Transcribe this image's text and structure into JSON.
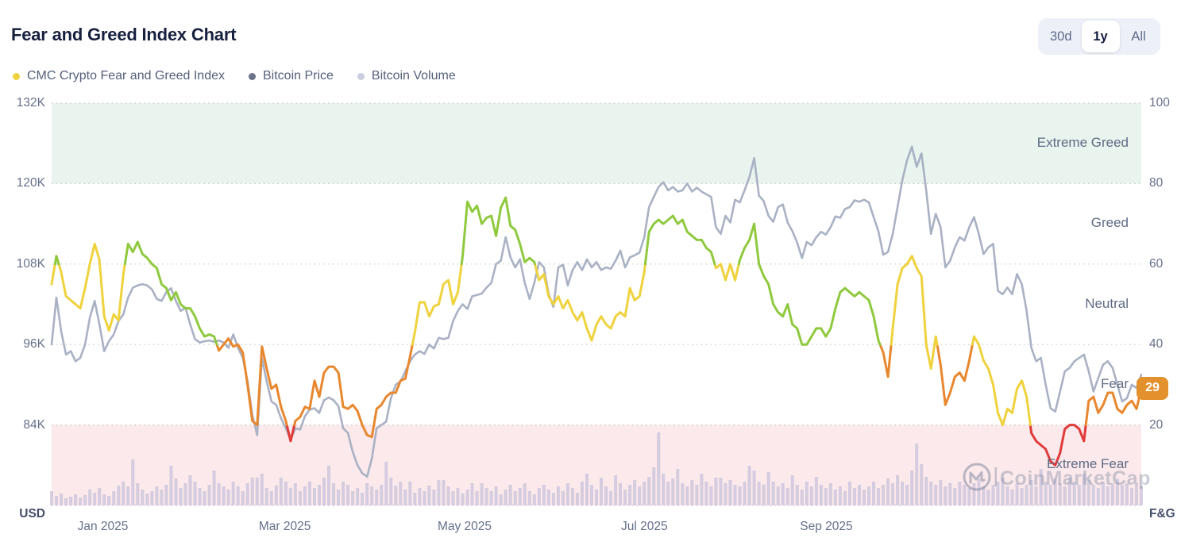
{
  "header": {
    "title": "Fear and Greed Index Chart"
  },
  "toolbar": {
    "ranges": [
      {
        "label": "30d",
        "active": false
      },
      {
        "label": "1y",
        "active": true
      },
      {
        "label": "All",
        "active": false
      }
    ]
  },
  "legend": [
    {
      "label": "CMC Crypto Fear and Greed Index",
      "color": "#efd23d"
    },
    {
      "label": "Bitcoin Price",
      "color": "#6a7288"
    },
    {
      "label": "Bitcoin Volume",
      "color": "#c9cede"
    }
  ],
  "watermark": {
    "label": "CoinMarketCap"
  },
  "chart_data": {
    "type": "line",
    "title": "Fear and Greed Index Chart",
    "legend_position": "top-left",
    "grid": "horizontal-dotted",
    "grid_color": "#c9c9c9",
    "x_ticks": [
      {
        "label": "Jan 2025",
        "pct": 4.7
      },
      {
        "label": "Mar 2025",
        "pct": 21.4
      },
      {
        "label": "May 2025",
        "pct": 37.9
      },
      {
        "label": "Jul 2025",
        "pct": 54.4
      },
      {
        "label": "Sep 2025",
        "pct": 71.1
      }
    ],
    "y_left": {
      "unit": "USD",
      "range_thousand_usd": [
        72,
        132
      ],
      "ticks": [
        {
          "label": "132K",
          "value": 132
        },
        {
          "label": "120K",
          "value": 120
        },
        {
          "label": "108K",
          "value": 108
        },
        {
          "label": "96K",
          "value": 96
        },
        {
          "label": "84K",
          "value": 84
        }
      ]
    },
    "y_right": {
      "unit": "F&G",
      "range": [
        0,
        100
      ],
      "ticks": [
        {
          "label": "100",
          "value": 100
        },
        {
          "label": "80",
          "value": 80
        },
        {
          "label": "60",
          "value": 60
        },
        {
          "label": "40",
          "value": 40
        },
        {
          "label": "20",
          "value": 20
        }
      ]
    },
    "zones": [
      {
        "label": "Extreme Greed",
        "min": 80,
        "max": 100,
        "band": "#e9f4ee"
      },
      {
        "label": "Greed",
        "min": 60,
        "max": 80,
        "band": null
      },
      {
        "label": "Neutral",
        "min": 40,
        "max": 60,
        "band": null
      },
      {
        "label": "Fear",
        "min": 20,
        "max": 40,
        "band": null
      },
      {
        "label": "Extreme Fear",
        "min": 0,
        "max": 20,
        "band": "#fbe9eb"
      }
    ],
    "fg_segment_colors": [
      {
        "max": 20,
        "color": "#e03a3a"
      },
      {
        "max": 40,
        "color": "#e8872e"
      },
      {
        "max": 60,
        "color": "#efd23d"
      },
      {
        "max": 80,
        "color": "#8fc93e"
      },
      {
        "max": 100,
        "color": "#4fae3f"
      }
    ],
    "btc_line_color": "#a9b1c4",
    "volume_bar_color": "#cfc8de",
    "current_value": {
      "value": 29,
      "color": "#e2912c"
    },
    "series": [
      {
        "name": "CMC Crypto Fear and Greed Index",
        "axis": "right",
        "type": "line",
        "values": [
          55,
          62,
          58,
          52,
          51,
          50,
          49,
          54,
          60,
          65,
          61,
          47,
          43.5,
          47.5,
          46,
          57.5,
          65,
          63,
          65.5,
          62.5,
          61.5,
          60,
          59,
          55,
          54,
          51,
          53,
          50,
          49,
          49,
          47,
          44,
          42,
          42.5,
          42,
          38.5,
          40,
          41.5,
          39.5,
          40,
          38,
          30,
          21,
          20,
          39.5,
          34,
          29,
          30,
          24.5,
          21,
          16,
          21,
          22,
          24.5,
          24,
          31,
          27,
          33,
          34.5,
          34.5,
          33,
          24.5,
          24,
          25,
          23.5,
          20,
          17.5,
          17,
          24,
          25,
          27,
          28,
          28,
          31,
          31.5,
          37,
          43,
          50.5,
          50.5,
          47,
          49.5,
          50,
          55,
          56,
          50,
          53,
          62,
          75.5,
          73,
          74.5,
          70,
          71.5,
          72,
          67,
          74,
          76.5,
          69.5,
          68.5,
          65,
          60.5,
          61.5,
          60.5,
          56,
          57.5,
          52,
          50,
          52,
          49,
          51,
          48,
          46,
          48,
          44,
          41,
          45,
          47,
          45,
          44,
          47,
          48,
          47,
          54,
          51,
          52,
          58,
          68,
          70,
          71,
          70,
          71,
          72,
          70,
          71,
          68,
          67,
          66,
          66,
          64,
          63,
          59,
          60,
          56,
          60,
          56,
          61,
          64,
          66,
          70,
          60,
          57,
          55,
          50,
          48,
          47,
          50,
          45,
          44,
          40,
          40,
          42,
          44,
          44,
          42,
          44,
          49,
          53,
          54,
          53,
          52,
          53,
          52,
          51,
          47,
          41,
          38,
          32,
          44,
          55,
          59,
          60,
          62,
          59,
          57,
          40,
          34,
          42,
          35,
          25,
          28,
          32,
          33,
          31,
          36,
          42,
          40,
          36,
          34,
          30,
          23,
          20,
          24,
          23,
          29,
          31,
          27,
          18,
          16,
          15,
          14,
          11,
          10,
          13,
          19,
          20,
          20,
          19,
          16,
          26,
          27,
          23,
          25,
          28,
          28,
          24,
          23,
          25,
          26,
          24,
          29
        ]
      },
      {
        "name": "Bitcoin Price",
        "axis": "left",
        "type": "line",
        "unit": "thousand USD",
        "values": [
          96,
          103,
          98,
          94.5,
          95,
          93.5,
          94,
          96,
          100,
          102.5,
          99,
          95,
          96.5,
          97.5,
          99.5,
          100.5,
          103,
          104.5,
          104.8,
          105,
          104.8,
          104.2,
          102.8,
          102.5,
          103.8,
          104.4,
          102.5,
          101,
          101.5,
          99,
          96.8,
          96.3,
          96.5,
          96.6,
          96.4,
          96.6,
          96.3,
          95.5,
          97.5,
          95.5,
          94,
          90.5,
          85.5,
          82.5,
          94,
          90.5,
          87.5,
          87,
          85,
          83.5,
          81.8,
          83.5,
          83.3,
          85.3,
          86.3,
          86.5,
          85.8,
          87.7,
          88.1,
          87.7,
          86.8,
          83.5,
          82.8,
          80,
          78,
          76.8,
          76.3,
          79,
          83.5,
          84,
          84.5,
          88,
          90,
          90.5,
          92,
          93.5,
          94.5,
          95,
          94.6,
          96,
          95.4,
          97,
          96.8,
          97,
          99.5,
          101,
          102,
          101.3,
          103.2,
          103.4,
          103.6,
          104.5,
          105.2,
          108,
          108.5,
          112,
          109,
          107.5,
          108.7,
          105.2,
          102.8,
          105.2,
          108.3,
          107.5,
          103.6,
          101.6,
          107.5,
          107.9,
          104.8,
          107.1,
          108.3,
          107.1,
          108.7,
          107.5,
          108.3,
          107.1,
          107.5,
          107.3,
          108.5,
          110,
          107.5,
          109,
          109.3,
          109.7,
          112,
          116.5,
          118,
          119.5,
          120.2,
          119,
          119.5,
          118.8,
          119,
          120,
          118.8,
          119.4,
          118.8,
          118.4,
          118,
          113.5,
          112.5,
          115.2,
          114.2,
          117.6,
          117.2,
          119,
          121,
          123.8,
          118.2,
          117.4,
          115.2,
          114.3,
          116.5,
          116.9,
          114.2,
          112.9,
          111.2,
          108.9,
          111.3,
          110.8,
          112,
          112.8,
          112.4,
          113.5,
          115.1,
          114.9,
          116.2,
          116.5,
          117.5,
          117.3,
          117.6,
          117.2,
          115,
          112.9,
          109.4,
          109.8,
          112.5,
          116.5,
          120.5,
          123.5,
          125.5,
          122.5,
          124.5,
          119,
          112.5,
          115.5,
          113.5,
          107.5,
          108.5,
          110.5,
          112,
          111.5,
          113.5,
          115,
          112.5,
          109.5,
          110.5,
          111,
          104,
          103.5,
          104.5,
          103.5,
          106.5,
          105,
          101,
          95.5,
          93.5,
          94,
          90,
          86.5,
          86,
          89,
          92,
          92.5,
          93.5,
          94,
          94.5,
          92,
          89,
          91,
          93,
          93.5,
          92.5,
          90,
          87.5,
          88,
          90,
          89.5,
          91.5
        ]
      },
      {
        "name": "Bitcoin Volume",
        "axis": "none",
        "type": "bar",
        "unit": "relative height 0-100",
        "values": [
          18,
          12,
          15,
          9,
          11,
          14,
          10,
          13,
          20,
          16,
          22,
          14,
          12,
          18,
          25,
          30,
          24,
          58,
          28,
          20,
          15,
          18,
          24,
          20,
          26,
          50,
          34,
          22,
          28,
          38,
          30,
          22,
          18,
          26,
          44,
          28,
          24,
          20,
          30,
          24,
          18,
          28,
          35,
          35,
          40,
          22,
          18,
          25,
          35,
          30,
          22,
          28,
          18,
          24,
          30,
          22,
          26,
          35,
          50,
          28,
          20,
          30,
          26,
          18,
          22,
          16,
          28,
          24,
          20,
          26,
          55,
          35,
          25,
          30,
          20,
          30,
          16,
          22,
          18,
          25,
          20,
          32,
          32,
          24,
          18,
          22,
          15,
          20,
          28,
          18,
          28,
          22,
          18,
          24,
          14,
          20,
          26,
          18,
          22,
          28,
          18,
          14,
          22,
          26,
          20,
          16,
          24,
          18,
          28,
          22,
          16,
          30,
          40,
          26,
          20,
          35,
          24,
          18,
          38,
          28,
          20,
          26,
          32,
          24,
          30,
          36,
          48,
          92,
          40,
          30,
          34,
          46,
          28,
          24,
          32,
          26,
          40,
          30,
          24,
          35,
          35,
          28,
          32,
          26,
          24,
          30,
          50,
          44,
          30,
          26,
          42,
          30,
          24,
          28,
          22,
          38,
          26,
          20,
          30,
          24,
          36,
          26,
          22,
          28,
          20,
          24,
          18,
          30,
          22,
          26,
          20,
          24,
          30,
          22,
          26,
          34,
          28,
          38,
          30,
          26,
          44,
          78,
          52,
          36,
          30,
          26,
          32,
          24,
          28,
          22,
          30,
          26,
          22,
          28,
          34,
          24,
          20,
          26,
          30,
          35,
          24,
          20,
          28,
          22,
          26,
          32,
          24,
          46,
          30,
          26,
          34,
          28,
          24,
          35,
          30,
          26,
          40,
          32,
          26,
          22,
          30,
          24,
          28,
          34,
          26,
          28,
          22,
          26,
          24
        ]
      }
    ]
  }
}
